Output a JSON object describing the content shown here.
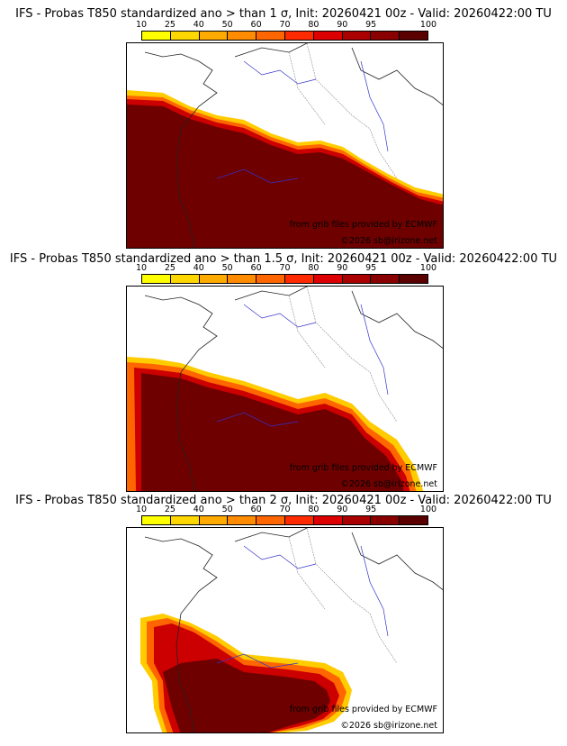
{
  "colorbar": {
    "labels": [
      "10",
      "25",
      "40",
      "50",
      "60",
      "70",
      "80",
      "90",
      "95",
      "100"
    ],
    "colors": [
      "#ffff00",
      "#ffd700",
      "#ffaa00",
      "#ff8c00",
      "#ff6600",
      "#ff2a00",
      "#dd0000",
      "#aa0000",
      "#880000",
      "#5a0000"
    ]
  },
  "panels": [
    {
      "title": "IFS - Probas T850  standardized ano > than 1 σ, Init: 20260421 00z - Valid: 20260422:00 TU",
      "credit_source": "from grib files provided by ECMWF",
      "credit_copyright": "©2026 sb@irizone.net"
    },
    {
      "title": "IFS - Probas T850  standardized ano > than 1.5 σ, Init: 20260421 00z - Valid: 20260422:00 TU",
      "credit_source": "from grib files provided by ECMWF",
      "credit_copyright": "©2026 sb@irizone.net"
    },
    {
      "title": "IFS - Probas T850  standardized ano > than 2 σ, Init: 20260421 00z - Valid: 20260422:00 TU",
      "credit_source": "from grib files provided by ECMWF",
      "credit_copyright": "©2026 sb@irizone.net"
    }
  ]
}
